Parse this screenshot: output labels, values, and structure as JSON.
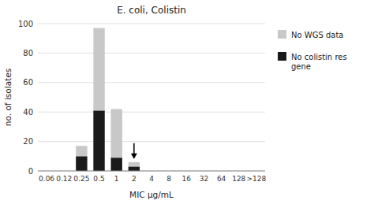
{
  "chart_data": {
    "type": "bar",
    "stacked": true,
    "title": "E. coli, Colistin",
    "x_label": "MIC μg/mL",
    "y_label": "no. of isolates",
    "categories": [
      "0.06",
      "0.12",
      "0.25",
      "0.5",
      "1",
      "2",
      "4",
      "8",
      "16",
      "32",
      "64",
      "128",
      ">128"
    ],
    "series": [
      {
        "name": "No colistin res\ngene",
        "color": "#1a1a1a",
        "values": [
          0,
          0,
          10,
          41,
          9,
          3,
          0,
          0,
          0,
          0,
          0,
          0,
          0
        ]
      },
      {
        "name": "No WGS data",
        "color": "#c8c8c8",
        "values": [
          0,
          0,
          7,
          56,
          33,
          3,
          0,
          0,
          0,
          0,
          0,
          0,
          0
        ]
      }
    ],
    "ylim": [
      0,
      100
    ],
    "yticks": [
      0,
      20,
      40,
      60,
      80,
      100
    ],
    "grid": true,
    "annotations": [
      {
        "category": "2",
        "marker": "arrow"
      }
    ]
  }
}
